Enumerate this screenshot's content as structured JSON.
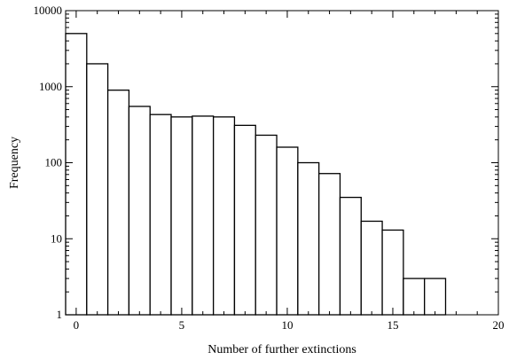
{
  "chart_data": {
    "type": "bar",
    "title": "",
    "xlabel": "Number of further extinctions",
    "ylabel": "Frequency",
    "y_scale": "log",
    "xlim": [
      -0.5,
      20
    ],
    "ylim": [
      1,
      10000
    ],
    "x_ticks": [
      0,
      5,
      10,
      15,
      20
    ],
    "x_tick_labels": [
      "0",
      "5",
      "10",
      "15",
      "20"
    ],
    "y_ticks": [
      1,
      10,
      100,
      1000,
      10000
    ],
    "y_tick_labels": [
      "1",
      "10",
      "100",
      "1000",
      "10000"
    ],
    "bin_width": 1,
    "categories": [
      0,
      1,
      2,
      3,
      4,
      5,
      6,
      7,
      8,
      9,
      10,
      11,
      12,
      13,
      14,
      15,
      16,
      17,
      18,
      19
    ],
    "values": [
      5000,
      2000,
      900,
      550,
      430,
      400,
      410,
      400,
      310,
      230,
      160,
      100,
      72,
      35,
      17,
      13,
      3,
      3,
      1,
      1
    ],
    "grid": false
  }
}
